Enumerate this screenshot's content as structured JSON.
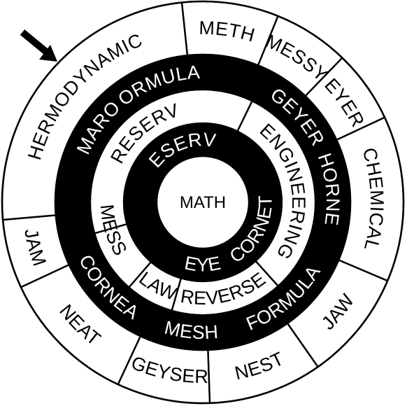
{
  "puzzle": {
    "center_word": "MATH",
    "pointer_icon": "arrow-pointer-icon",
    "colors": {
      "dark": "#000000",
      "light": "#ffffff"
    },
    "rings": [
      {
        "name": "ring-1",
        "words": [
          {
            "text": "RESERVE",
            "shade": "dark"
          },
          {
            "text": "CORNET",
            "shade": "dark"
          },
          {
            "text": "EYE",
            "shade": "dark"
          }
        ]
      },
      {
        "name": "ring-2",
        "words": [
          {
            "text": "PRESERVE",
            "shade": "light"
          },
          {
            "text": "ENGINEERING",
            "shade": "light"
          },
          {
            "text": "REVERSE",
            "shade": "light"
          },
          {
            "text": "LAW",
            "shade": "light"
          },
          {
            "text": "MESS",
            "shade": "light"
          }
        ]
      },
      {
        "name": "ring-3",
        "words": [
          {
            "text": "FORMULAE",
            "shade": "dark"
          },
          {
            "text": "GEYER",
            "shade": "dark"
          },
          {
            "text": "HORNET",
            "shade": "dark"
          },
          {
            "text": "FORMULA",
            "shade": "dark"
          },
          {
            "text": "MESH",
            "shade": "dark"
          },
          {
            "text": "CORNEA",
            "shade": "dark"
          },
          {
            "text": "FUMAROLE",
            "shade": "dark"
          }
        ]
      },
      {
        "name": "ring-4",
        "words": [
          {
            "text": "METH",
            "shade": "light"
          },
          {
            "text": "MESSY",
            "shade": "light"
          },
          {
            "text": "EYER",
            "shade": "light"
          },
          {
            "text": "CHEMICAL",
            "shade": "light"
          },
          {
            "text": "JAW",
            "shade": "light"
          },
          {
            "text": "NEST",
            "shade": "light"
          },
          {
            "text": "GEYSER",
            "shade": "light"
          },
          {
            "text": "NEAT",
            "shade": "light"
          },
          {
            "text": "JAM",
            "shade": "light"
          },
          {
            "text": "THERMODYNAMICS",
            "shade": "light"
          }
        ]
      }
    ]
  }
}
